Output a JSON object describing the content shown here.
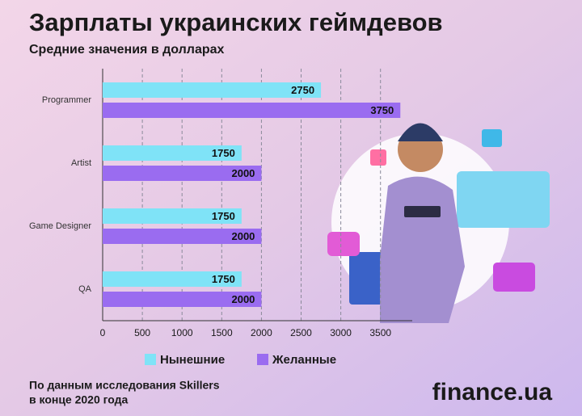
{
  "chart_data": {
    "type": "hbar",
    "title": "Зарплаты украинских геймдевов",
    "subtitle": "Средние значения в долларах",
    "categories": [
      "Programmer",
      "Artist",
      "Game Designer",
      "QA"
    ],
    "series": [
      {
        "name": "Нынешние",
        "color": "#7fe3f7",
        "values": [
          2750,
          1750,
          1750,
          1750
        ]
      },
      {
        "name": "Желанные",
        "color": "#9a6cf0",
        "values": [
          3750,
          2000,
          2000,
          2000
        ]
      }
    ],
    "xlim": [
      0,
      3900
    ],
    "xticks": [
      0,
      500,
      1000,
      1500,
      2000,
      2500,
      3000,
      3500
    ],
    "grid": true,
    "legend": "bottom",
    "source": [
      "По данным исследования Skillers",
      "в конце 2020 года"
    ],
    "brand": "finance.ua"
  }
}
